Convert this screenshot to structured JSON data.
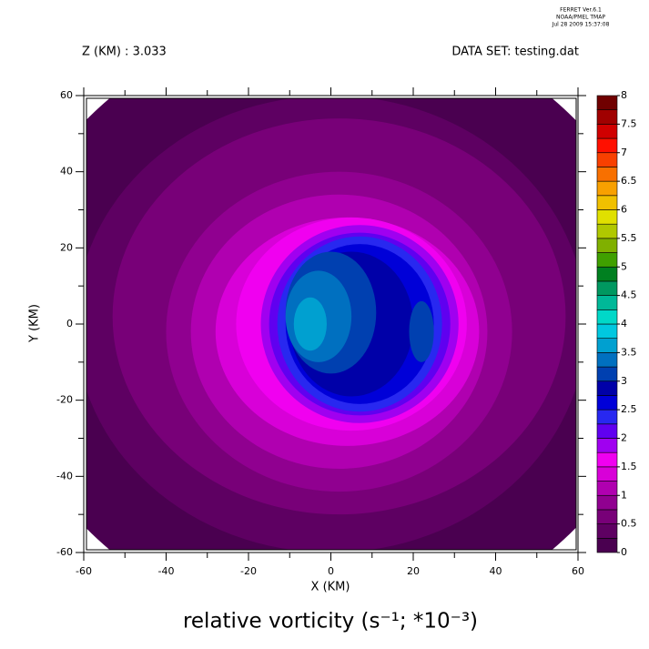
{
  "header": {
    "program": "FERRET  Ver.6.1",
    "lab": "NOAA/PMEL TMAP",
    "timestamp": "Jul 28 2009 15:37:08",
    "left": "Z (KM) : 3.033",
    "right": "DATA SET: testing.dat"
  },
  "chart_data": {
    "type": "contour",
    "title": "relative vorticity (s⁻¹; *10⁻³)",
    "x_label": "X (KM)",
    "y_label": "Y (KM)",
    "xlim": [
      -60,
      60
    ],
    "ylim": [
      -60,
      60
    ],
    "xticks": [
      -60,
      -40,
      -20,
      0,
      20,
      40,
      60
    ],
    "yticks": [
      -60,
      -40,
      -20,
      0,
      20,
      40,
      60
    ],
    "xminorticks": [
      -50,
      -30,
      -10,
      10,
      30,
      50
    ],
    "yminorticks": [
      -50,
      -30,
      -10,
      10,
      30,
      50
    ],
    "colorbar": {
      "levels": [
        0,
        0.25,
        0.5,
        0.75,
        1,
        1.25,
        1.5,
        1.75,
        2,
        2.25,
        2.5,
        2.75,
        3,
        3.25,
        3.5,
        3.75,
        4,
        4.25,
        4.5,
        4.75,
        5,
        5.25,
        5.5,
        5.75,
        6,
        6.25,
        6.5,
        6.75,
        7,
        7.25,
        7.5,
        7.75,
        8
      ],
      "colors": [
        "#4a0050",
        "#5e0062",
        "#780078",
        "#900090",
        "#b000b0",
        "#d800d8",
        "#f000f0",
        "#a000f0",
        "#6000f0",
        "#2828f0",
        "#0000d8",
        "#0000a8",
        "#0040b0",
        "#0070c0",
        "#00a0d0",
        "#00c8e0",
        "#00d8c8",
        "#00b898",
        "#009860",
        "#008020",
        "#40a000",
        "#80b000",
        "#b0c800",
        "#e0e000",
        "#f0c000",
        "#f8a000",
        "#f87000",
        "#f84000",
        "#ff1000",
        "#d00000",
        "#a00000",
        "#700000"
      ],
      "ticks": [
        0,
        0.5,
        1,
        1.5,
        2,
        2.5,
        3,
        3.5,
        4,
        4.5,
        5,
        5.5,
        6,
        6.5,
        7,
        7.5,
        8
      ]
    },
    "regions": [
      {
        "level": 0,
        "x": 0,
        "y": 0,
        "rx": 80,
        "ry": 80
      },
      {
        "level": 0.25,
        "x": 0,
        "y": 0,
        "rx": 62,
        "ry": 60
      },
      {
        "level": 0.5,
        "x": 2,
        "y": 2,
        "rx": 55,
        "ry": 52
      },
      {
        "level": 0.75,
        "x": 2,
        "y": -2,
        "rx": 42,
        "ry": 42
      },
      {
        "level": 1,
        "x": 2,
        "y": -2,
        "rx": 36,
        "ry": 36
      },
      {
        "level": 1.25,
        "x": 4,
        "y": -2,
        "rx": 32,
        "ry": 30
      },
      {
        "level": 1.5,
        "x": 5,
        "y": 0,
        "rx": 28,
        "ry": 28
      },
      {
        "level": 1.75,
        "x": 7,
        "y": 0,
        "rx": 24,
        "ry": 26
      },
      {
        "level": 2,
        "x": 7,
        "y": 0,
        "rx": 22,
        "ry": 24
      },
      {
        "level": 2.25,
        "x": 7,
        "y": 0,
        "rx": 20,
        "ry": 23
      },
      {
        "level": 2.5,
        "x": 7,
        "y": 0,
        "rx": 18,
        "ry": 21
      },
      {
        "level": 2.75,
        "x": 5,
        "y": 0,
        "rx": 15,
        "ry": 19
      },
      {
        "level": 3,
        "x": 0,
        "y": 3,
        "rx": 11,
        "ry": 16
      },
      {
        "level": 3,
        "x": 22,
        "y": -2,
        "rx": 3,
        "ry": 8
      },
      {
        "level": 3.25,
        "x": -3,
        "y": 2,
        "rx": 8,
        "ry": 12
      },
      {
        "level": 3.5,
        "x": -5,
        "y": 0,
        "rx": 4,
        "ry": 7
      }
    ]
  }
}
